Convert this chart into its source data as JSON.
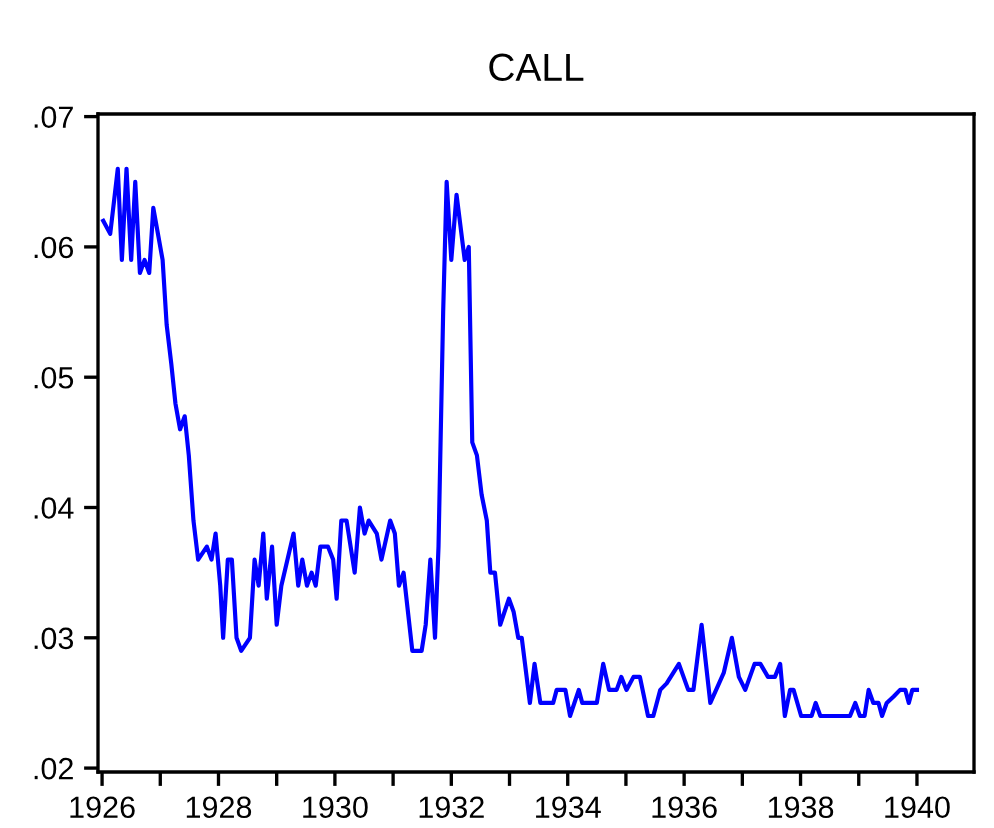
{
  "chart_data": {
    "type": "line",
    "title": "CALL",
    "color": "#0000ff",
    "marker": "none",
    "line_style": "solid",
    "grid": false,
    "legend": false,
    "x": [
      1926.02,
      1926.14,
      1926.27,
      1926.34,
      1926.42,
      1926.5,
      1926.57,
      1926.65,
      1926.73,
      1926.81,
      1926.88,
      1927.04,
      1927.11,
      1927.19,
      1927.26,
      1927.34,
      1927.42,
      1927.49,
      1927.57,
      1927.65,
      1927.8,
      1927.88,
      1927.95,
      1928.03,
      1928.08,
      1928.16,
      1928.23,
      1928.31,
      1928.39,
      1928.54,
      1928.62,
      1928.69,
      1928.77,
      1928.83,
      1928.92,
      1929.0,
      1929.08,
      1929.29,
      1929.37,
      1929.44,
      1929.52,
      1929.6,
      1929.67,
      1929.75,
      1929.88,
      1929.97,
      1930.03,
      1930.11,
      1930.2,
      1930.34,
      1930.43,
      1930.51,
      1930.58,
      1930.72,
      1930.8,
      1930.95,
      1931.03,
      1931.1,
      1931.18,
      1931.33,
      1931.49,
      1931.56,
      1931.64,
      1931.72,
      1931.78,
      1931.86,
      1931.92,
      1932.0,
      1932.09,
      1932.23,
      1932.3,
      1932.36,
      1932.44,
      1932.52,
      1932.61,
      1932.67,
      1932.75,
      1932.84,
      1932.99,
      1933.07,
      1933.15,
      1933.21,
      1933.35,
      1933.43,
      1933.53,
      1933.75,
      1933.81,
      1933.96,
      1934.04,
      1934.19,
      1934.25,
      1934.5,
      1934.61,
      1934.71,
      1934.84,
      1934.92,
      1935.01,
      1935.13,
      1935.24,
      1935.38,
      1935.47,
      1935.59,
      1935.7,
      1935.91,
      1936.07,
      1936.16,
      1936.3,
      1936.45,
      1936.68,
      1936.82,
      1936.94,
      1937.05,
      1937.21,
      1937.31,
      1937.44,
      1937.56,
      1937.65,
      1937.73,
      1937.82,
      1937.88,
      1938.01,
      1938.19,
      1938.26,
      1938.34,
      1938.85,
      1938.94,
      1939.02,
      1939.1,
      1939.17,
      1939.25,
      1939.34,
      1939.4,
      1939.48,
      1939.6,
      1939.71,
      1939.8,
      1939.86,
      1939.92,
      1940.0
    ],
    "values": [
      0.062,
      0.061,
      0.066,
      0.059,
      0.066,
      0.059,
      0.065,
      0.058,
      0.059,
      0.058,
      0.063,
      0.059,
      0.054,
      0.051,
      0.048,
      0.046,
      0.047,
      0.044,
      0.039,
      0.036,
      0.037,
      0.036,
      0.038,
      0.034,
      0.03,
      0.036,
      0.036,
      0.03,
      0.029,
      0.03,
      0.036,
      0.034,
      0.038,
      0.033,
      0.037,
      0.031,
      0.034,
      0.038,
      0.034,
      0.036,
      0.034,
      0.035,
      0.034,
      0.037,
      0.037,
      0.036,
      0.033,
      0.039,
      0.039,
      0.035,
      0.04,
      0.038,
      0.039,
      0.038,
      0.036,
      0.039,
      0.038,
      0.034,
      0.035,
      0.029,
      0.029,
      0.031,
      0.036,
      0.03,
      0.037,
      0.055,
      0.065,
      0.059,
      0.064,
      0.059,
      0.06,
      0.045,
      0.044,
      0.041,
      0.039,
      0.035,
      0.035,
      0.031,
      0.033,
      0.032,
      0.03,
      0.03,
      0.025,
      0.028,
      0.025,
      0.025,
      0.026,
      0.026,
      0.024,
      0.026,
      0.025,
      0.025,
      0.028,
      0.026,
      0.026,
      0.027,
      0.026,
      0.027,
      0.027,
      0.024,
      0.024,
      0.026,
      0.0265,
      0.028,
      0.026,
      0.026,
      0.031,
      0.025,
      0.0273,
      0.03,
      0.027,
      0.026,
      0.028,
      0.028,
      0.027,
      0.027,
      0.028,
      0.024,
      0.026,
      0.026,
      0.024,
      0.024,
      0.025,
      0.024,
      0.024,
      0.025,
      0.024,
      0.024,
      0.026,
      0.025,
      0.025,
      0.024,
      0.025,
      0.0255,
      0.026,
      0.026,
      0.025,
      0.026,
      0.026
    ],
    "xlim": [
      1925.93,
      1940.98
    ],
    "xticks": [
      1926,
      {
        "value": 1927,
        "label": null
      },
      1928,
      {
        "value": 1929,
        "label": null
      },
      1930,
      {
        "value": 1931,
        "label": null
      },
      1932,
      {
        "value": 1933,
        "label": null
      },
      1934,
      {
        "value": 1935,
        "label": null
      },
      1936,
      {
        "value": 1937,
        "label": null
      },
      1938,
      {
        "value": 1939,
        "label": null
      },
      1940
    ],
    "ylim": [
      0.0197,
      0.0702
    ],
    "yticks": [
      {
        "value": 0.02,
        "label": ".02"
      },
      {
        "value": 0.03,
        "label": ".03"
      },
      {
        "value": 0.04,
        "label": ".04"
      },
      {
        "value": 0.05,
        "label": ".05"
      },
      {
        "value": 0.06,
        "label": ".06"
      },
      {
        "value": 0.07,
        "label": ".07"
      }
    ]
  }
}
